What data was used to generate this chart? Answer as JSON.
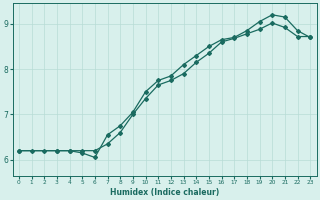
{
  "title": "",
  "xlabel": "Humidex (Indice chaleur)",
  "background_color": "#d8f0ec",
  "grid_color": "#b8dcd6",
  "line_color": "#1a6b60",
  "markersize": 2.0,
  "linewidth": 0.9,
  "xlim": [
    -0.5,
    23.5
  ],
  "ylim": [
    5.65,
    9.45
  ],
  "yticks": [
    6,
    7,
    8,
    9
  ],
  "xticks": [
    0,
    1,
    2,
    3,
    4,
    5,
    6,
    7,
    8,
    9,
    10,
    11,
    12,
    13,
    14,
    15,
    16,
    17,
    18,
    19,
    20,
    21,
    22,
    23
  ],
  "line1_x": [
    0,
    1,
    2,
    3,
    4,
    5,
    6,
    7,
    8,
    9,
    10,
    11,
    12,
    13,
    14,
    15,
    16,
    17,
    18,
    19,
    20,
    21,
    22,
    23
  ],
  "line1_y": [
    6.2,
    6.2,
    6.2,
    6.2,
    6.2,
    6.15,
    6.05,
    6.55,
    6.75,
    7.05,
    7.5,
    7.75,
    7.85,
    8.1,
    8.3,
    8.5,
    8.65,
    8.7,
    8.85,
    9.05,
    9.2,
    9.15,
    8.85,
    8.7
  ],
  "line2_x": [
    0,
    3,
    4,
    5,
    6,
    7,
    8,
    9,
    10,
    11,
    12,
    13,
    14,
    15,
    16,
    17,
    18,
    19,
    20,
    21,
    22,
    23
  ],
  "line2_y": [
    6.2,
    6.2,
    6.2,
    6.2,
    6.2,
    6.35,
    6.6,
    7.0,
    7.35,
    7.65,
    7.75,
    7.9,
    8.15,
    8.35,
    8.6,
    8.68,
    8.78,
    8.88,
    9.02,
    8.92,
    8.72,
    8.72
  ]
}
